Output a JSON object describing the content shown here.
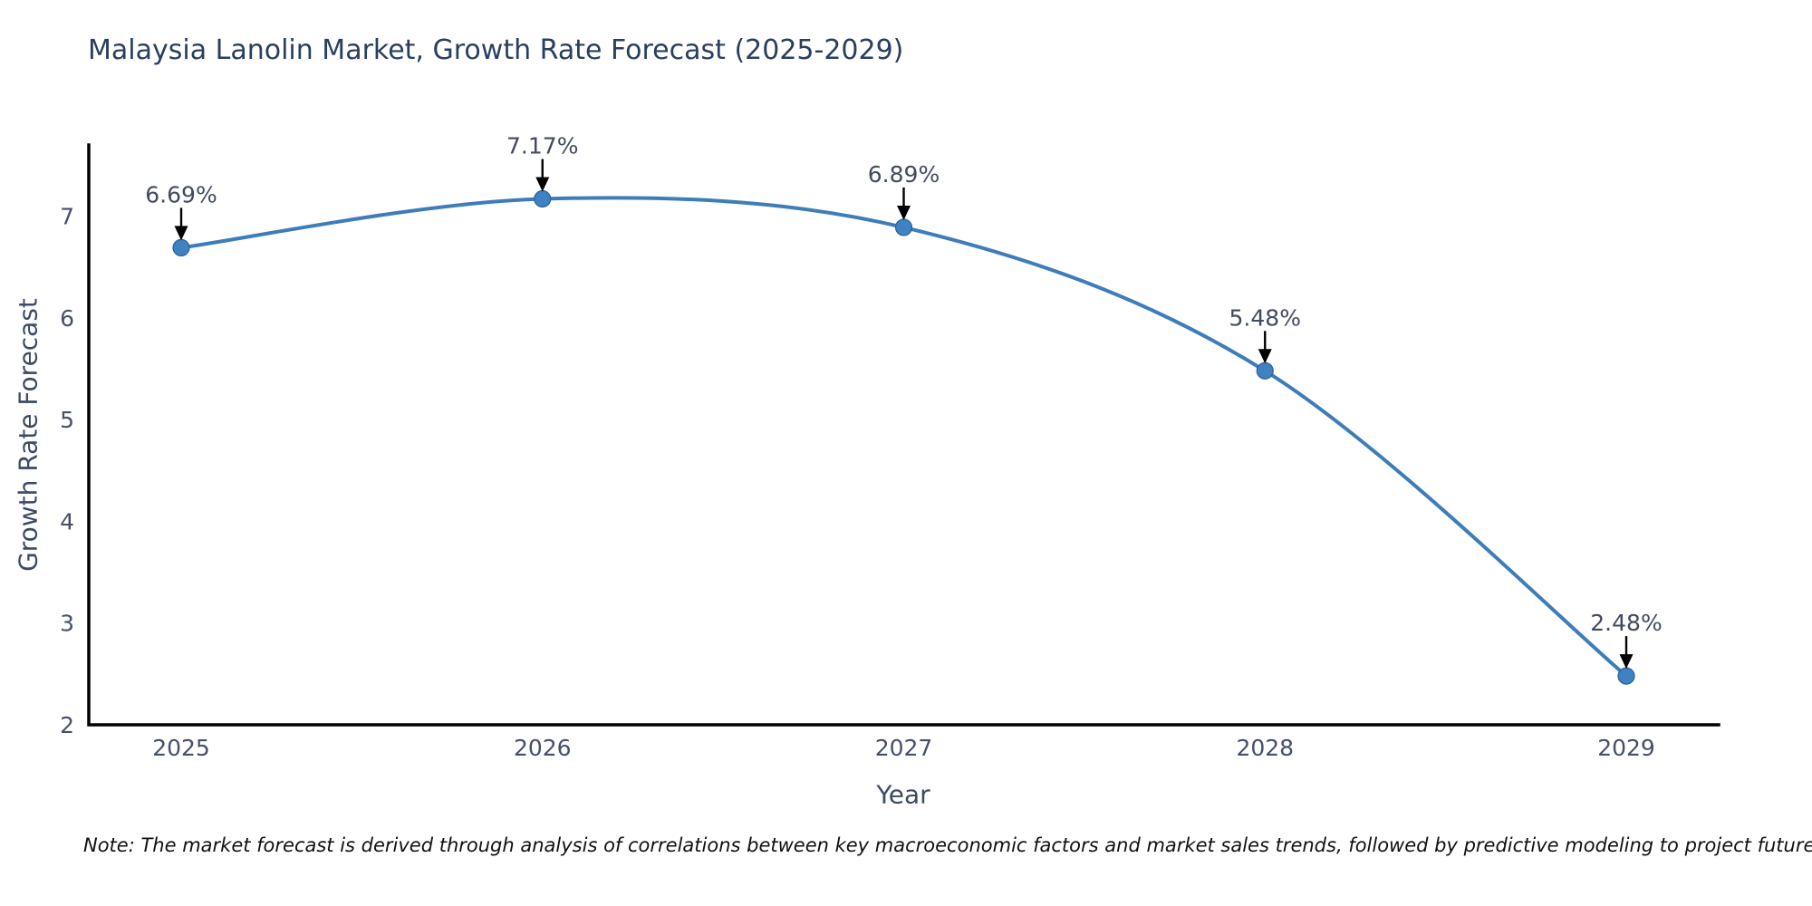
{
  "title": "Malaysia Lanolin Market, Growth Rate Forecast (2025-2029)",
  "note": "Note: The market forecast is derived through analysis of correlations between key macroeconomic factors and market sales trends, followed by predictive modeling to project future sales.",
  "colors": {
    "title": "#2a3f5f",
    "axis_title": "#3b4a66",
    "tick_label": "#47506a",
    "point_label": "#434a5c",
    "axis_line": "#000000",
    "line": "#3e7db9",
    "marker_fill": "#3f81c1",
    "marker_edge": "#2a6298",
    "arrow": "#000000",
    "background": "#ffffff"
  },
  "chart_data": {
    "type": "line",
    "title": "Malaysia Lanolin Market, Growth Rate Forecast (2025-2029)",
    "xlabel": "Year",
    "ylabel": "Growth Rate Forecast",
    "categories": [
      "2025",
      "2026",
      "2027",
      "2028",
      "2029"
    ],
    "values": [
      6.69,
      7.17,
      6.89,
      5.48,
      2.48
    ],
    "point_labels": [
      "6.69%",
      "7.17%",
      "6.89%",
      "5.48%",
      "2.48%"
    ],
    "yticks": [
      2,
      3,
      4,
      5,
      6,
      7
    ],
    "ylim": [
      2,
      7.7
    ],
    "grid": false,
    "legend": "none",
    "smooth": true,
    "marker": "circle",
    "annotations": "value labels with downward arrows above each point"
  }
}
